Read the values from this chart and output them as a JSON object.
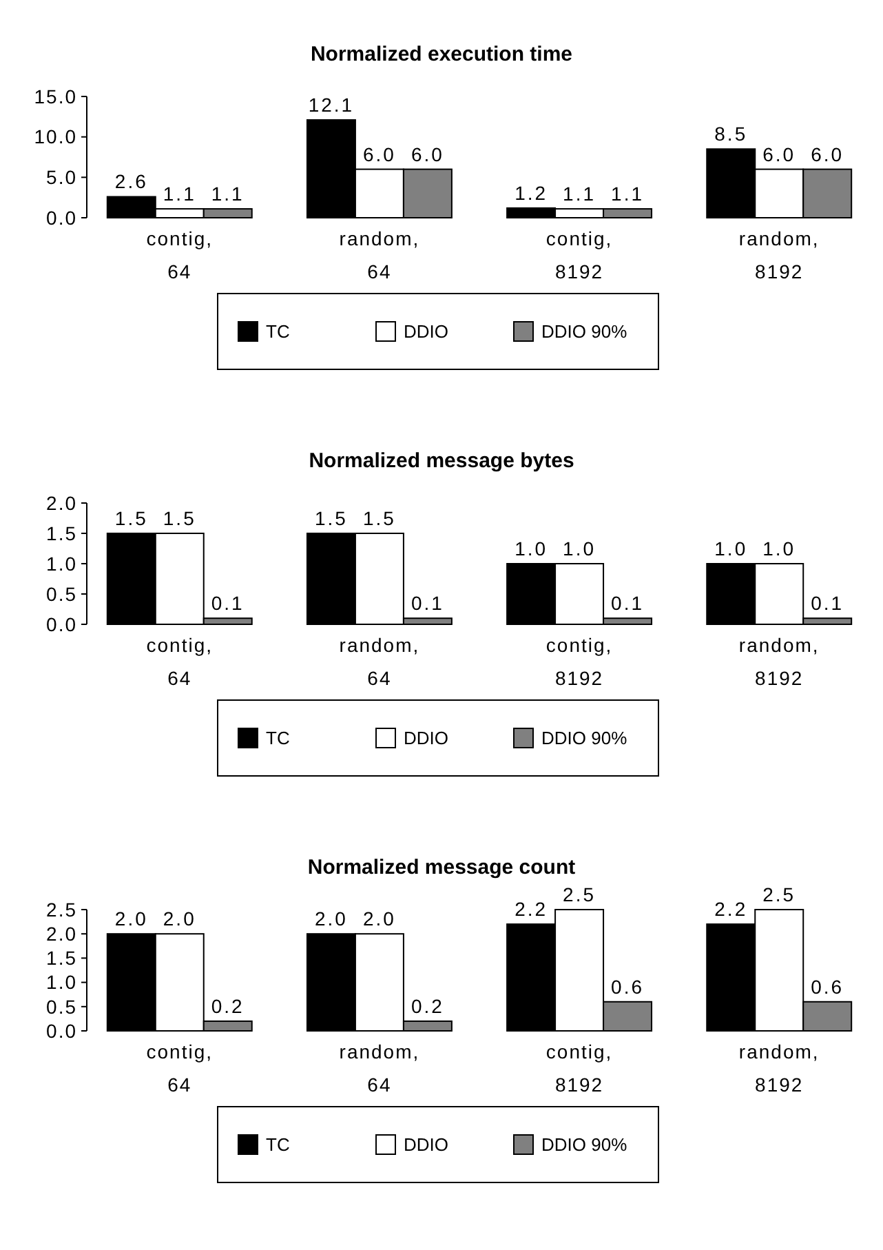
{
  "chart_data": [
    {
      "type": "bar",
      "title": "Normalized execution time",
      "categories": [
        "contig, 64",
        "random, 64",
        "contig, 8192",
        "random, 8192"
      ],
      "series": [
        {
          "name": "TC",
          "color": "#000000",
          "values": [
            2.6,
            12.1,
            1.2,
            8.5
          ],
          "value_labels": [
            "2.6",
            "12.1",
            "1.2",
            "8.5"
          ]
        },
        {
          "name": "DDIO",
          "color": "#ffffff",
          "values": [
            1.1,
            6.0,
            1.1,
            6.0
          ],
          "value_labels": [
            "1.1",
            "6.0",
            "1.1",
            "6.0"
          ]
        },
        {
          "name": "DDIO 90%",
          "color": "#808080",
          "values": [
            1.1,
            6.0,
            1.1,
            6.0
          ],
          "value_labels": [
            "1.1",
            "6.0",
            "1.1",
            "6.0"
          ]
        }
      ],
      "ylim": [
        0,
        15
      ],
      "yticks": [
        {
          "value": 0,
          "label": "0.0"
        },
        {
          "value": 5,
          "label": "5.0"
        },
        {
          "value": 10,
          "label": "10.0"
        },
        {
          "value": 15,
          "label": "15.0"
        }
      ],
      "legend": "bottom",
      "grid": false
    },
    {
      "type": "bar",
      "title": "Normalized message bytes",
      "categories": [
        "contig, 64",
        "random, 64",
        "contig, 8192",
        "random, 8192"
      ],
      "series": [
        {
          "name": "TC",
          "color": "#000000",
          "values": [
            1.5,
            1.5,
            1.0,
            1.0
          ],
          "value_labels": [
            "1.5",
            "1.5",
            "1.0",
            "1.0"
          ]
        },
        {
          "name": "DDIO",
          "color": "#ffffff",
          "values": [
            1.5,
            1.5,
            1.0,
            1.0
          ],
          "value_labels": [
            "1.5",
            "1.5",
            "1.0",
            "1.0"
          ]
        },
        {
          "name": "DDIO 90%",
          "color": "#808080",
          "values": [
            0.1,
            0.1,
            0.1,
            0.1
          ],
          "value_labels": [
            "0.1",
            "0.1",
            "0.1",
            "0.1"
          ]
        }
      ],
      "ylim": [
        0,
        2
      ],
      "yticks": [
        {
          "value": 0,
          "label": "0.0"
        },
        {
          "value": 0.5,
          "label": "0.5"
        },
        {
          "value": 1,
          "label": "1.0"
        },
        {
          "value": 1.5,
          "label": "1.5"
        },
        {
          "value": 2,
          "label": "2.0"
        }
      ],
      "legend": "bottom",
      "grid": false
    },
    {
      "type": "bar",
      "title": "Normalized message count",
      "categories": [
        "contig, 64",
        "random, 64",
        "contig, 8192",
        "random, 8192"
      ],
      "series": [
        {
          "name": "TC",
          "color": "#000000",
          "values": [
            2.0,
            2.0,
            2.2,
            2.2
          ],
          "value_labels": [
            "2.0",
            "2.0",
            "2.2",
            "2.2"
          ]
        },
        {
          "name": "DDIO",
          "color": "#ffffff",
          "values": [
            2.0,
            2.0,
            2.5,
            2.5
          ],
          "value_labels": [
            "2.0",
            "2.0",
            "2.5",
            "2.5"
          ]
        },
        {
          "name": "DDIO 90%",
          "color": "#808080",
          "values": [
            0.2,
            0.2,
            0.6,
            0.6
          ],
          "value_labels": [
            "0.2",
            "0.2",
            "0.6",
            "0.6"
          ]
        }
      ],
      "ylim": [
        0,
        2.5
      ],
      "yticks": [
        {
          "value": 0,
          "label": "0.0"
        },
        {
          "value": 0.5,
          "label": "0.5"
        },
        {
          "value": 1,
          "label": "1.0"
        },
        {
          "value": 1.5,
          "label": "1.5"
        },
        {
          "value": 2,
          "label": "2.0"
        },
        {
          "value": 2.5,
          "label": "2.5"
        }
      ],
      "legend": "bottom",
      "grid": false
    }
  ]
}
